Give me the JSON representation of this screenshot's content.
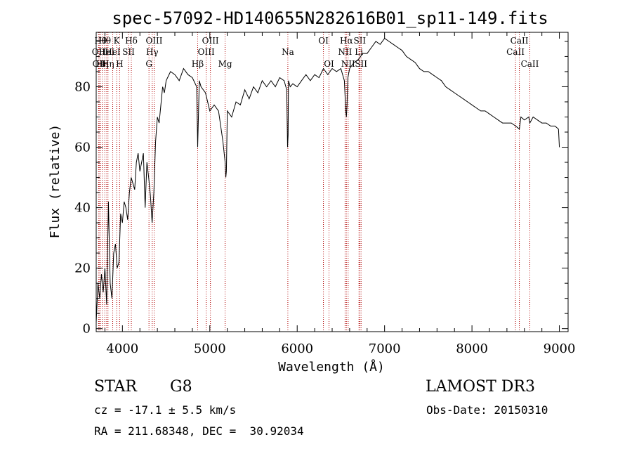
{
  "chart_data": {
    "type": "line",
    "title": "spec-57092-HD140655N282616B01_sp11-149.fits",
    "xlabel": "Wavelength (Å)",
    "ylabel": "Flux (relative)",
    "xlim": [
      3700,
      9100
    ],
    "ylim": [
      -1,
      98
    ],
    "x_ticks": [
      4000,
      5000,
      6000,
      7000,
      8000,
      9000
    ],
    "y_ticks": [
      0,
      20,
      40,
      60,
      80
    ],
    "grid": false,
    "series": [
      {
        "x": [
          3700,
          3720,
          3740,
          3760,
          3780,
          3800,
          3820,
          3840,
          3860,
          3880,
          3900,
          3920,
          3940,
          3960,
          3980,
          4000,
          4020,
          4040,
          4060,
          4080,
          4100,
          4120,
          4140,
          4160,
          4180,
          4200,
          4220,
          4240,
          4260,
          4280,
          4300,
          4320,
          4340,
          4360,
          4380,
          4400,
          4420,
          4440,
          4460,
          4480,
          4500,
          4550,
          4600,
          4650,
          4700,
          4750,
          4800,
          4850,
          4861,
          4880,
          4900,
          4950,
          5000,
          5050,
          5100,
          5150,
          5175,
          5183,
          5190,
          5200,
          5250,
          5300,
          5350,
          5400,
          5450,
          5500,
          5550,
          5600,
          5650,
          5700,
          5750,
          5800,
          5850,
          5880,
          5890,
          5896,
          5900,
          5920,
          5950,
          6000,
          6050,
          6100,
          6150,
          6200,
          6250,
          6300,
          6350,
          6400,
          6450,
          6500,
          6540,
          6556,
          6563,
          6570,
          6580,
          6600,
          6650,
          6700,
          6750,
          6800,
          6850,
          6900,
          6950,
          7000,
          7050,
          7100,
          7150,
          7200,
          7250,
          7300,
          7350,
          7400,
          7450,
          7500,
          7550,
          7600,
          7650,
          7700,
          7750,
          7800,
          7850,
          7900,
          7950,
          8000,
          8050,
          8100,
          8150,
          8200,
          8250,
          8300,
          8350,
          8400,
          8450,
          8500,
          8542,
          8560,
          8600,
          8650,
          8662,
          8700,
          8750,
          8800,
          8850,
          8900,
          8950,
          8990,
          9000
        ],
        "y": [
          2,
          15,
          10,
          18,
          12,
          20,
          8,
          42,
          15,
          10,
          25,
          28,
          20,
          22,
          38,
          35,
          42,
          40,
          36,
          45,
          50,
          48,
          46,
          55,
          58,
          52,
          55,
          58,
          40,
          55,
          50,
          44,
          35,
          45,
          62,
          70,
          68,
          74,
          80,
          78,
          82,
          85,
          84,
          82,
          86,
          84,
          83,
          80,
          60,
          82,
          80,
          78,
          72,
          74,
          72,
          62,
          55,
          50,
          52,
          72,
          70,
          75,
          74,
          79,
          76,
          80,
          78,
          82,
          80,
          82,
          80,
          83,
          82,
          79,
          60,
          64,
          82,
          80,
          81,
          80,
          82,
          84,
          82,
          84,
          83,
          86,
          84,
          86,
          85,
          86,
          82,
          72,
          70,
          74,
          83,
          86,
          88,
          89,
          91,
          91,
          93,
          95,
          94,
          96,
          95,
          94,
          93,
          92,
          90,
          89,
          88,
          86,
          85,
          85,
          84,
          83,
          82,
          80,
          79,
          78,
          77,
          76,
          75,
          74,
          73,
          72,
          72,
          71,
          70,
          69,
          68,
          68,
          68,
          67,
          66,
          70,
          69,
          70,
          68,
          70,
          69,
          68,
          68,
          67,
          67,
          66,
          60
        ]
      }
    ],
    "line_markers": [
      {
        "w": 3727,
        "label": "OII",
        "row": 2
      },
      {
        "w": 3734,
        "label": "OII",
        "row": 3
      },
      {
        "w": 3750,
        "label": "Hθ",
        "row": 1
      },
      {
        "w": 3770,
        "label": "Hη",
        "row": 3
      },
      {
        "w": 3798,
        "label": "Hθ",
        "row": 1
      },
      {
        "w": 3820,
        "label": "HeI",
        "row": 2
      },
      {
        "w": 3835,
        "label": "Hη",
        "row": 3
      },
      {
        "w": 3889,
        "label": "HeI",
        "row": 2
      },
      {
        "w": 3934,
        "label": "K",
        "row": 1
      },
      {
        "w": 3968,
        "label": "H",
        "row": 3
      },
      {
        "w": 4070,
        "label": "SII",
        "row": 2
      },
      {
        "w": 4102,
        "label": "Hδ",
        "row": 1
      },
      {
        "w": 4304,
        "label": "G",
        "row": 3
      },
      {
        "w": 4341,
        "label": "Hγ",
        "row": 2
      },
      {
        "w": 4363,
        "label": "OIII",
        "row": 1
      },
      {
        "w": 4861,
        "label": "Hβ",
        "row": 3
      },
      {
        "w": 4959,
        "label": "OIII",
        "row": 2
      },
      {
        "w": 5007,
        "label": "OIII",
        "row": 1
      },
      {
        "w": 5175,
        "label": "Mg",
        "row": 3
      },
      {
        "w": 5893,
        "label": "Na",
        "row": 2
      },
      {
        "w": 6300,
        "label": "OI",
        "row": 1
      },
      {
        "w": 6364,
        "label": "OI",
        "row": 3
      },
      {
        "w": 6548,
        "label": "NII",
        "row": 2
      },
      {
        "w": 6563,
        "label": "Hα",
        "row": 1
      },
      {
        "w": 6583,
        "label": "NII",
        "row": 3
      },
      {
        "w": 6707,
        "label": "Li",
        "row": 2
      },
      {
        "w": 6716,
        "label": "SII",
        "row": 1
      },
      {
        "w": 6731,
        "label": "SII",
        "row": 3
      },
      {
        "w": 8498,
        "label": "CaII",
        "row": 2
      },
      {
        "w": 8542,
        "label": "CaII",
        "row": 1
      },
      {
        "w": 8662,
        "label": "CaII",
        "row": 3
      }
    ]
  },
  "info": {
    "class_label": "STAR",
    "subclass": "G8",
    "survey": "LAMOST DR3",
    "cz": "cz = -17.1 ± 5.5 km/s",
    "obs_date": "Obs-Date: 20150310",
    "coords": "RA = 211.68348, DEC =  30.92034"
  },
  "colors": {
    "marker_line": "#b00000",
    "spectrum": "#000000"
  }
}
